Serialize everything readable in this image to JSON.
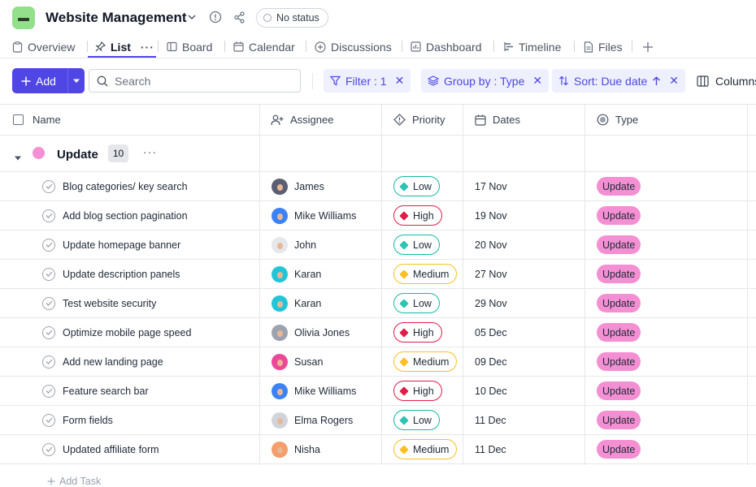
{
  "header": {
    "logo_icon": "project-logo-icon",
    "title": "Website Management",
    "status": "No status"
  },
  "tabs": [
    {
      "label": "Overview",
      "icon": "clipboard-icon"
    },
    {
      "label": "List",
      "icon": "pin-icon",
      "active": true
    },
    {
      "label": "Board",
      "icon": "board-icon"
    },
    {
      "label": "Calendar",
      "icon": "calendar-icon"
    },
    {
      "label": "Discussions",
      "icon": "discussion-icon"
    },
    {
      "label": "Dashboard",
      "icon": "dashboard-icon"
    },
    {
      "label": "Timeline",
      "icon": "timeline-icon"
    },
    {
      "label": "Files",
      "icon": "file-icon"
    }
  ],
  "toolbar": {
    "add_label": "Add",
    "search_placeholder": "Search",
    "filter_label": "Filter : 1",
    "group_label": "Group by : Type",
    "sort_label": "Sort: Due date",
    "columns_label": "Columns"
  },
  "columns": {
    "name": "Name",
    "assignee": "Assignee",
    "priority": "Priority",
    "dates": "Dates",
    "type": "Type"
  },
  "group": {
    "name": "Update",
    "count": "10",
    "color": "#f38fd2"
  },
  "priority_colors": {
    "Low": {
      "border": "#14b8a6",
      "fill": "#2cc4b3"
    },
    "High": {
      "border": "#e11d48",
      "fill": "#e11d48"
    },
    "Medium": {
      "border": "#fbbf24",
      "fill": "#fbbf24"
    }
  },
  "tasks": [
    {
      "name": "Blog categories/ key search",
      "assignee": "James",
      "priority": "Low",
      "date": "17 Nov",
      "type": "Update",
      "avatar_color": "#5b5f73"
    },
    {
      "name": "Add blog section pagination",
      "assignee": "Mike Williams",
      "priority": "High",
      "date": "19 Nov",
      "type": "Update",
      "avatar_color": "#3b82f6"
    },
    {
      "name": "Update homepage banner",
      "assignee": "John",
      "priority": "Low",
      "date": "20 Nov",
      "type": "Update",
      "avatar_color": "#e5e7eb"
    },
    {
      "name": "Update description panels",
      "assignee": "Karan",
      "priority": "Medium",
      "date": "27 Nov",
      "type": "Update",
      "avatar_color": "#22c5d8"
    },
    {
      "name": "Test website security",
      "assignee": "Karan",
      "priority": "Low",
      "date": "29 Nov",
      "type": "Update",
      "avatar_color": "#22c5d8"
    },
    {
      "name": "Optimize mobile page speed",
      "assignee": "Olivia Jones",
      "priority": "High",
      "date": "05 Dec",
      "type": "Update",
      "avatar_color": "#9ca3af"
    },
    {
      "name": "Add new landing page",
      "assignee": "Susan",
      "priority": "Medium",
      "date": "09 Dec",
      "type": "Update",
      "avatar_color": "#ec4899"
    },
    {
      "name": "Feature search bar",
      "assignee": "Mike Williams",
      "priority": "High",
      "date": "10 Dec",
      "type": "Update",
      "avatar_color": "#3b82f6"
    },
    {
      "name": "Form fields",
      "assignee": "Elma Rogers",
      "priority": "Low",
      "date": "11 Dec",
      "type": "Update",
      "avatar_color": "#d1d5db"
    },
    {
      "name": "Updated affiliate form",
      "assignee": "Nisha",
      "priority": "Medium",
      "date": "11 Dec",
      "type": "Update",
      "avatar_color": "#f59e6b"
    }
  ],
  "add_task_label": "Add Task"
}
